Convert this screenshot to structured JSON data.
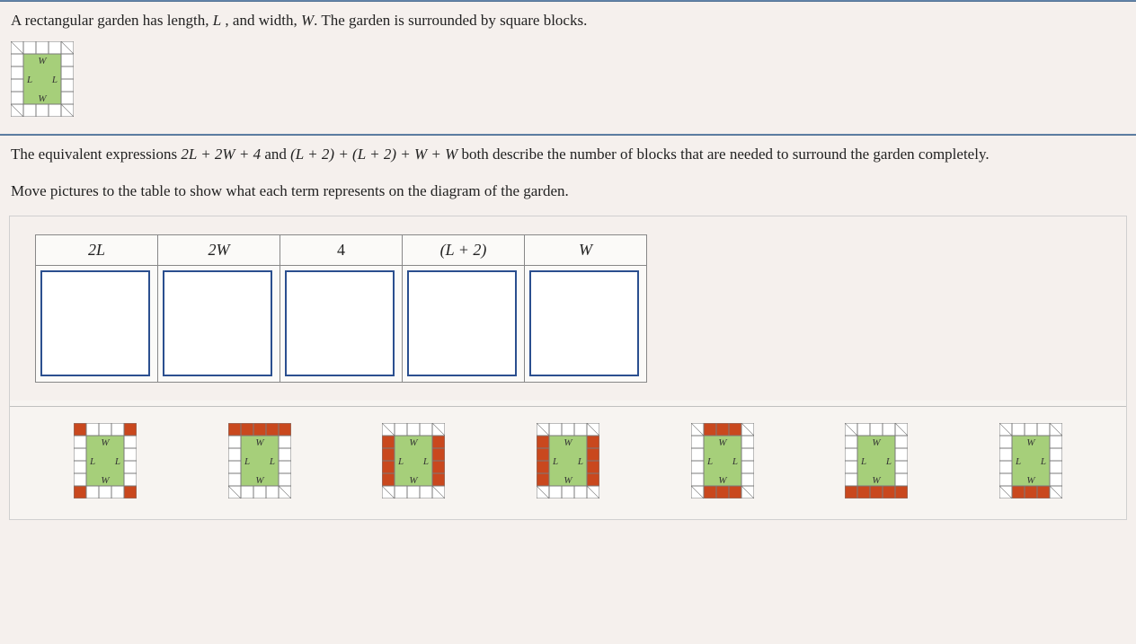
{
  "problem": {
    "intro_pre": "A rectangular garden has length, ",
    "L": "L",
    "intro_mid1": " , and width, ",
    "W": "W",
    "intro_post": ". The garden is surrounded by square blocks."
  },
  "equiv": {
    "pre": "The equivalent expressions ",
    "expr1": "2L + 2W + 4",
    "mid1": " and ",
    "expr2": "(L + 2) + (L + 2) + W + W",
    "post": " both describe the number of blocks that are needed to surround the garden completely."
  },
  "instruction": "Move pictures to the table to show what each term represents on the diagram of the garden.",
  "table_headers": [
    "2L",
    "2W",
    "4",
    "(L + 2)",
    "W"
  ],
  "garden_diagram": {
    "garden_fill": "#a6cf7a",
    "garden_stroke": "#1f6b1f",
    "block_fill": "#ffffff",
    "block_stroke": "#7a7a7a",
    "highlight_fill": "#c9481e",
    "label_W": "W",
    "label_L": "L",
    "cell": 14,
    "cols_inner": 3,
    "rows_inner": 4,
    "fontsize": 11
  },
  "choices": [
    {
      "name": "choice-corners",
      "highlight": "corners"
    },
    {
      "name": "choice-top-row",
      "highlight": "top_row_full"
    },
    {
      "name": "choice-sides-lr",
      "highlight": "sides_lr"
    },
    {
      "name": "choice-sides-lr-in",
      "highlight": "sides_lr_inner"
    },
    {
      "name": "choice-top-bottom",
      "highlight": "top_bottom_inner"
    },
    {
      "name": "choice-bottom-row",
      "highlight": "bottom_row_full"
    },
    {
      "name": "choice-bottom-inner",
      "highlight": "bottom_inner"
    }
  ]
}
